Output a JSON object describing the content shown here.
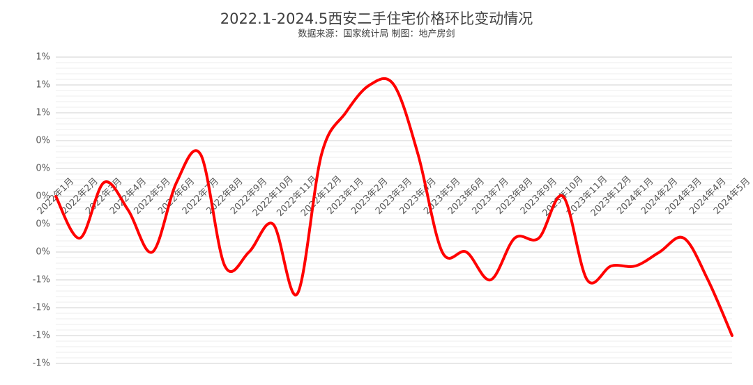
{
  "chart_data": {
    "type": "line",
    "title": "2022.1-2024.5西安二手住宅价格环比变动情况",
    "subtitle": "数据来源：国家统计局 制图：地产房剑",
    "categories": [
      "2022年1月",
      "2022年2月",
      "2022年3月",
      "2022年4月",
      "2022年5月",
      "2022年6月",
      "2022年7月",
      "2022年8月",
      "2022年9月",
      "2022年10月",
      "2022年11月",
      "2022年12月",
      "2023年1月",
      "2023年2月",
      "2023年3月",
      "2023年4月",
      "2023年5月",
      "2023年6月",
      "2023年7月",
      "2023年8月",
      "2023年9月",
      "2023年10月",
      "2023年11月",
      "2023年12月",
      "2024年1月",
      "2024年2月",
      "2024年3月",
      "2024年4月",
      "2024年5月"
    ],
    "series": [
      {
        "name": "环比",
        "color": "#ff0000",
        "values": [
          0.0,
          -0.3,
          0.1,
          -0.1,
          -0.4,
          0.1,
          0.3,
          -0.5,
          -0.4,
          -0.2,
          -0.7,
          0.3,
          0.6,
          0.8,
          0.8,
          0.3,
          -0.4,
          -0.4,
          -0.6,
          -0.3,
          -0.3,
          0.0,
          -0.6,
          -0.5,
          -0.5,
          -0.4,
          -0.3,
          -0.6,
          -1.0
        ]
      }
    ],
    "ylim": [
      -1.2,
      1.0
    ],
    "yticks": [
      {
        "value": 1.0,
        "label": "1%"
      },
      {
        "value": 0.8,
        "label": "1%"
      },
      {
        "value": 0.6,
        "label": "1%"
      },
      {
        "value": 0.4,
        "label": "0%"
      },
      {
        "value": 0.2,
        "label": "0%"
      },
      {
        "value": 0.0,
        "label": "0%"
      },
      {
        "value": -0.2,
        "label": "0%"
      },
      {
        "value": -0.4,
        "label": "0%"
      },
      {
        "value": -0.6,
        "label": "-1%"
      },
      {
        "value": -0.8,
        "label": "-1%"
      },
      {
        "value": -1.0,
        "label": "-1%"
      },
      {
        "value": -1.2,
        "label": "-1%"
      }
    ],
    "grid": true
  }
}
